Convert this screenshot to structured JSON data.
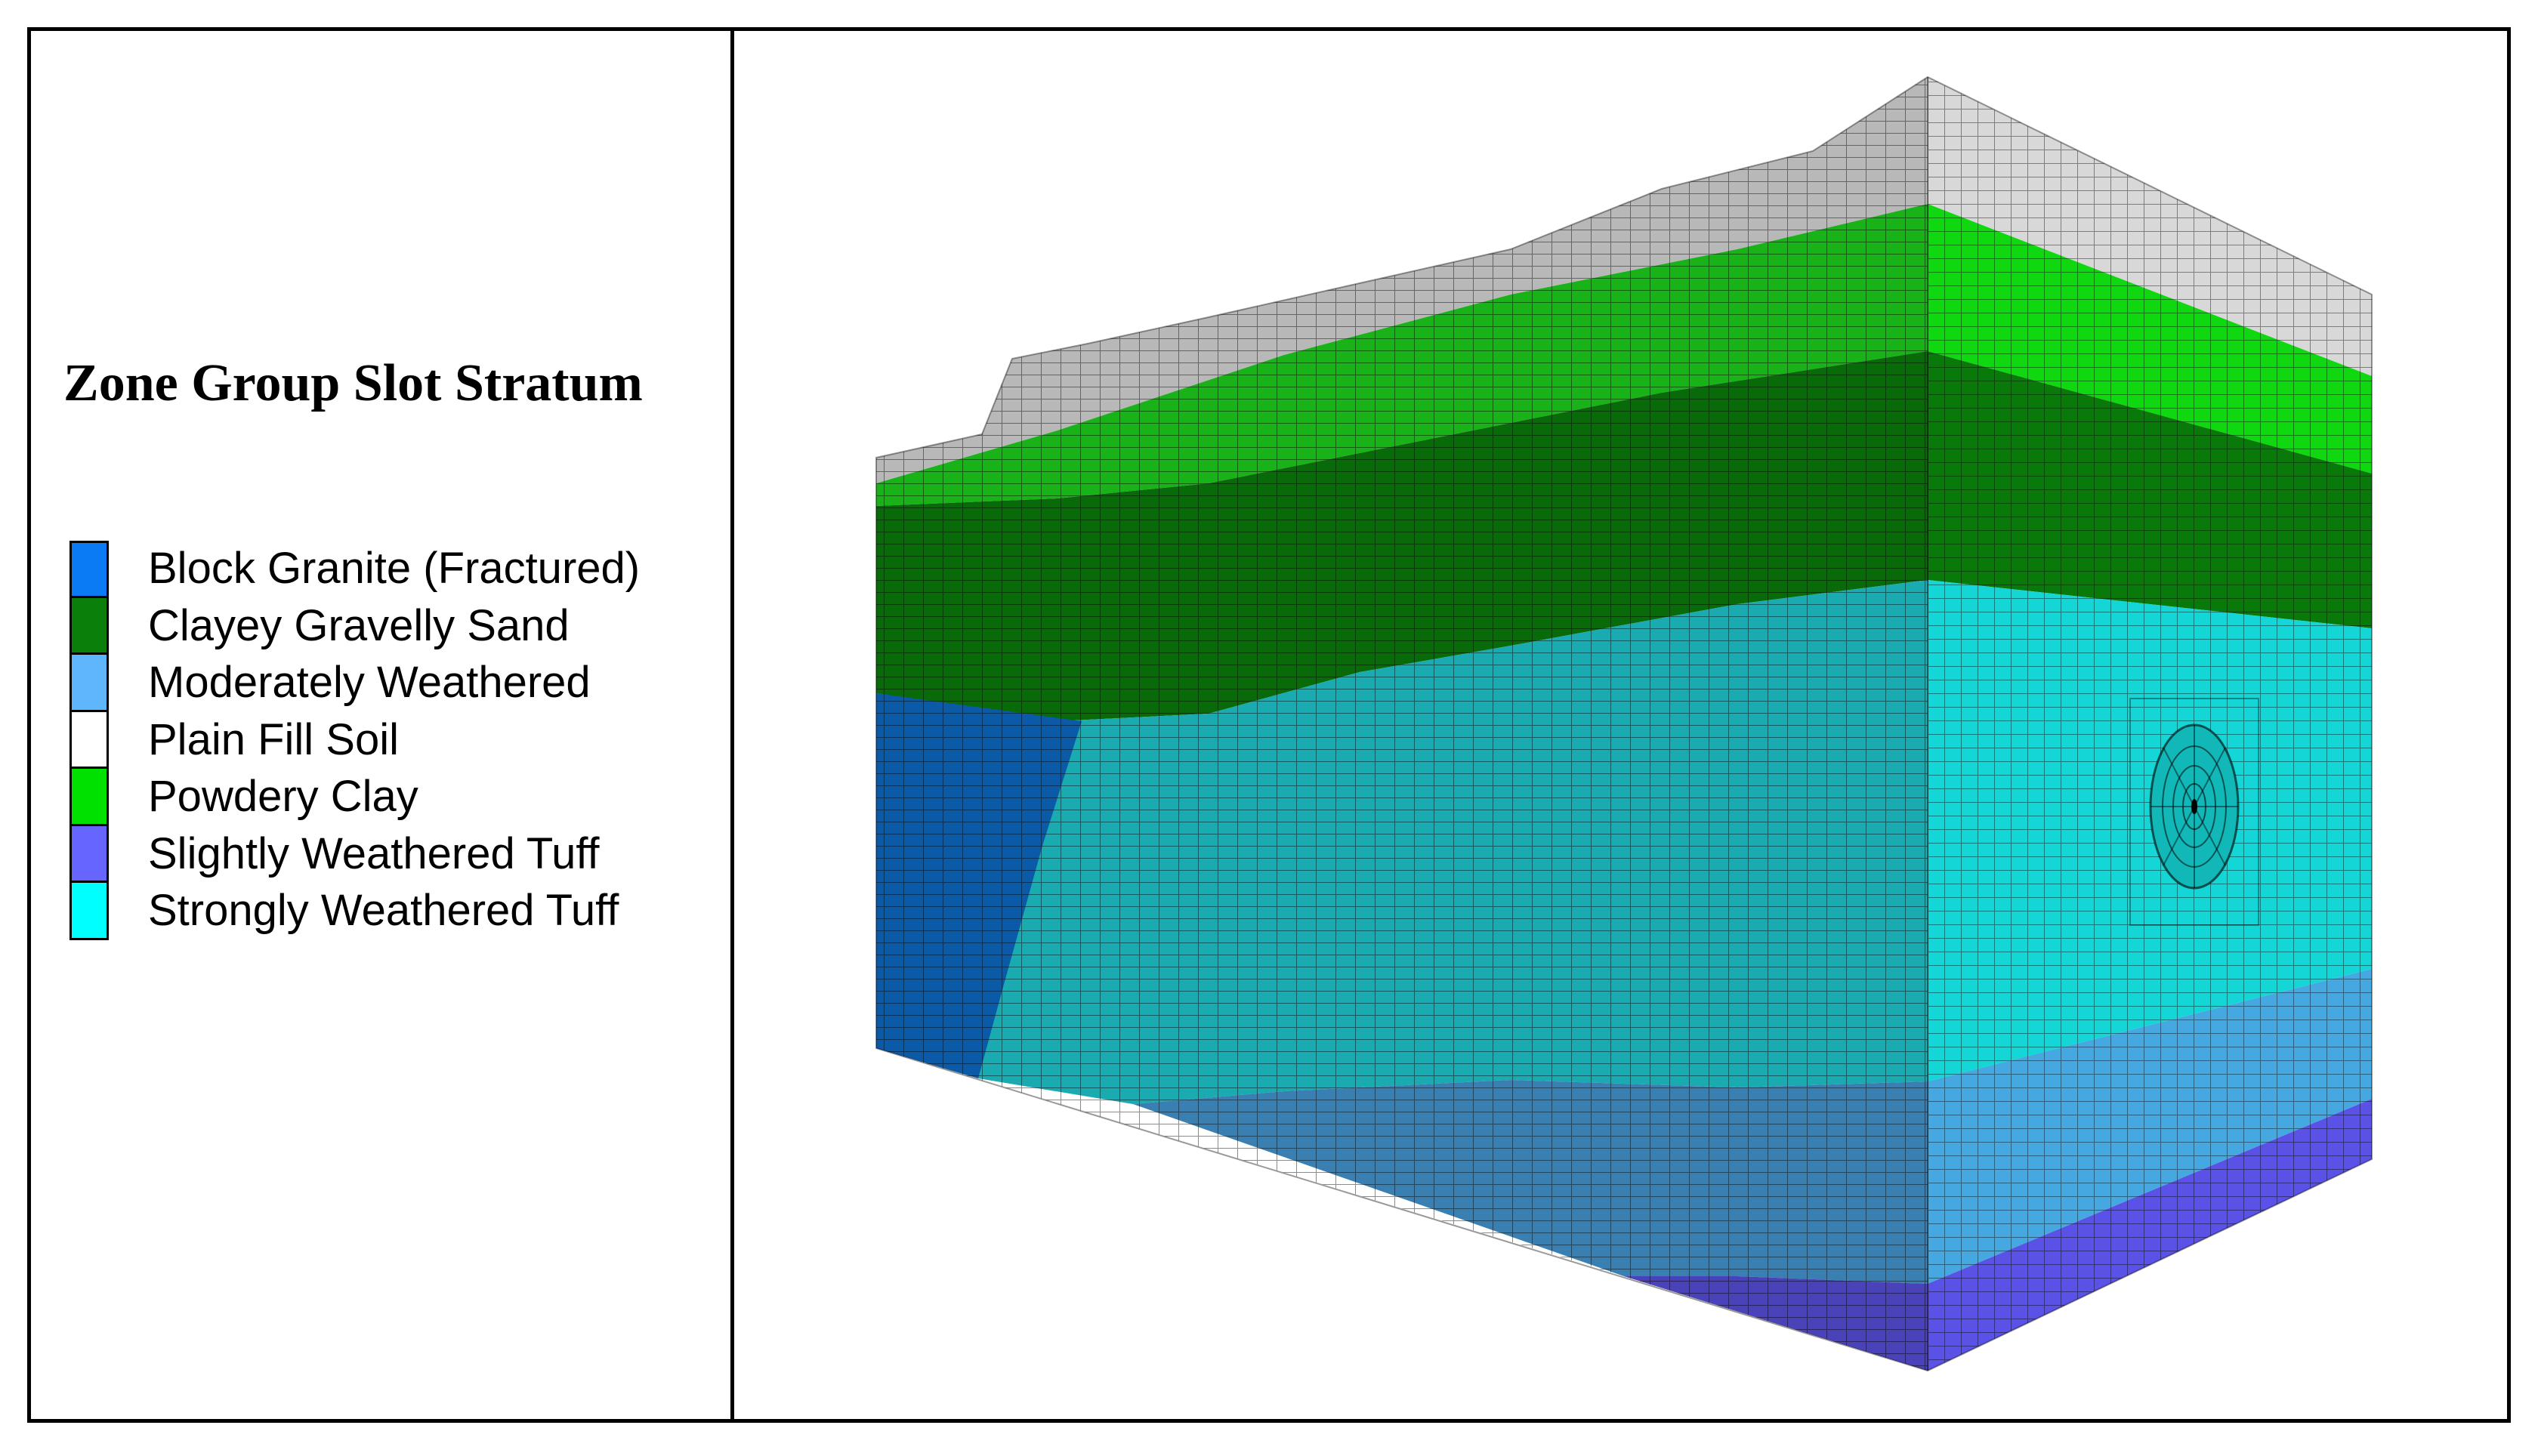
{
  "legend": {
    "title": "Zone Group Slot Stratum",
    "items": [
      {
        "label": "Block Granite (Fractured)",
        "color": "#0b7af5"
      },
      {
        "label": "Clayey Gravelly Sand",
        "color": "#0a800a"
      },
      {
        "label": "Moderately Weathered",
        "color": "#5fb6fb"
      },
      {
        "label": "Plain Fill Soil",
        "color": "#ffffff"
      },
      {
        "label": "Powdery Clay",
        "color": "#00e100"
      },
      {
        "label": "Slightly Weathered Tuff",
        "color": "#6666ff"
      },
      {
        "label": "Strongly Weathered Tuff",
        "color": "#00ffff"
      }
    ]
  },
  "model": {
    "description_icon": "meshed-3d-stratum-block",
    "strata_top_to_bottom": [
      "Plain Fill Soil",
      "Powdery Clay",
      "Clayey Gravelly Sand",
      "Strongly Weathered Tuff",
      "Moderately Weathered",
      "Slightly Weathered Tuff"
    ],
    "intrusion": "Block Granite (Fractured)",
    "feature": "tunnel-cross-section"
  }
}
